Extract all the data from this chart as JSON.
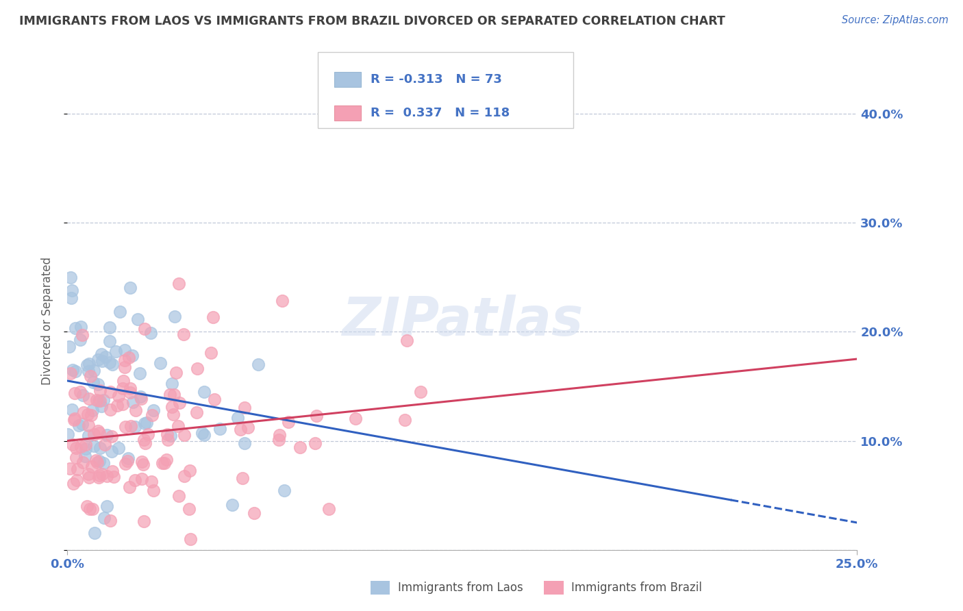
{
  "title": "IMMIGRANTS FROM LAOS VS IMMIGRANTS FROM BRAZIL DIVORCED OR SEPARATED CORRELATION CHART",
  "source_text": "Source: ZipAtlas.com",
  "ylabel": "Divorced or Separated",
  "legend_label1": "Immigrants from Laos",
  "legend_label2": "Immigrants from Brazil",
  "R1": -0.313,
  "N1": 73,
  "R2": 0.337,
  "N2": 118,
  "color1": "#a8c4e0",
  "color2": "#f4a0b4",
  "line_color1": "#3060c0",
  "line_color2": "#e0406080",
  "line_color2_solid": "#d04060",
  "axis_color": "#4472c4",
  "title_color": "#404040",
  "background_color": "#ffffff",
  "xlim": [
    0.0,
    0.25
  ],
  "ylim": [
    0.0,
    0.42
  ],
  "yticks": [
    0.0,
    0.1,
    0.2,
    0.3,
    0.4
  ],
  "xticks": [
    0.0,
    0.25
  ]
}
